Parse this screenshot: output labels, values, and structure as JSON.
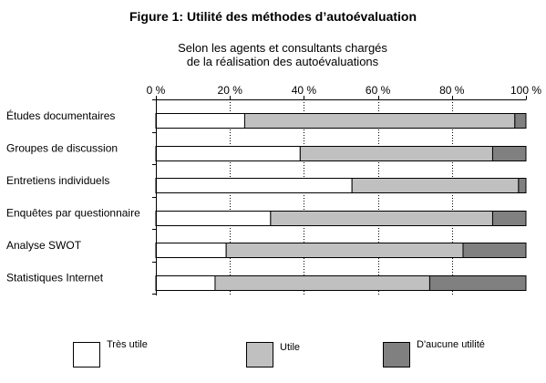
{
  "figure": {
    "title": "Figure 1: Utilité des méthodes d’autoévaluation",
    "subtitle_lines": [
      "Selon les agents et consultants chargés",
      "de la réalisation des autoévaluations"
    ]
  },
  "chart_data": {
    "type": "bar",
    "orientation": "horizontal",
    "stacked": true,
    "percent_stacked": true,
    "title": "Figure 1: Utilité des méthodes d’autoévaluation",
    "subtitle": "Selon les agents et consultants chargés de la réalisation des autoévaluations",
    "categories": [
      "Études documentaires",
      "Groupes de discussion",
      "Entretiens individuels",
      "Enquêtes par questionnaire",
      "Analyse SWOT",
      "Statistiques Internet"
    ],
    "series": [
      {
        "name": "Très utile",
        "color": "#ffffff",
        "values": [
          24,
          39,
          53,
          31,
          19,
          16
        ]
      },
      {
        "name": "Utile",
        "color": "#c0c0c0",
        "values": [
          73,
          52,
          45,
          60,
          64,
          58
        ]
      },
      {
        "name": "D'aucune utilité",
        "color": "#808080",
        "values": [
          3,
          9,
          2,
          9,
          17,
          26
        ]
      }
    ],
    "x_ticks": [
      "0 %",
      "20 %",
      "40 %",
      "60 %",
      "80 %",
      "100 %"
    ],
    "xlim": [
      0,
      100
    ],
    "x_axis_position": "top",
    "grid": "vertical",
    "legend_position": "bottom"
  }
}
